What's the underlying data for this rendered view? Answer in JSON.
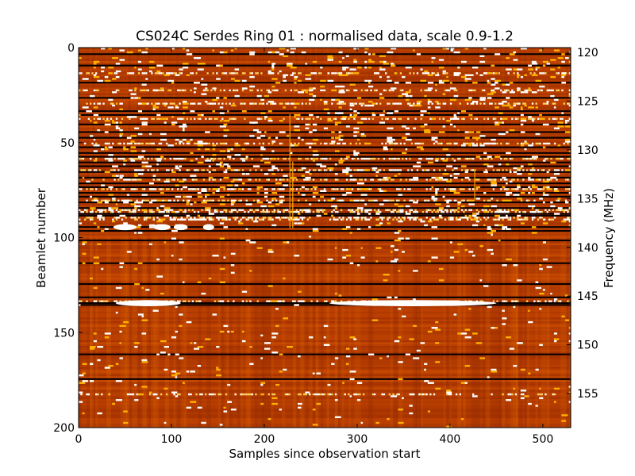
{
  "chart_data": {
    "type": "heatmap",
    "title": "CS024C Serdes Ring 01 : normalised data, scale 0.9-1.2",
    "xlabel": "Samples since observation start",
    "ylabel": "Beamlet number",
    "y2label": "Frequency (MHz)",
    "xlim": [
      0,
      530
    ],
    "ylim": [
      200,
      0
    ],
    "y2lim": [
      119.5,
      158.5
    ],
    "x_ticks": [
      0,
      100,
      200,
      300,
      400,
      500
    ],
    "y_ticks": [
      0,
      50,
      100,
      150,
      200
    ],
    "y2_ticks": [
      120,
      125,
      130,
      135,
      140,
      145,
      150,
      155
    ],
    "color_scale": [
      0.9,
      1.2
    ],
    "colormap": "afmhot",
    "grid": false,
    "dark_beamlets": [
      3,
      9,
      18,
      26,
      33,
      35,
      40,
      44,
      47,
      52,
      55,
      57,
      60,
      62,
      65,
      68,
      71,
      73,
      76,
      78,
      81,
      84,
      87,
      88,
      94,
      96,
      101,
      113,
      124,
      131,
      134,
      135,
      161,
      174
    ],
    "bright_beamlets": [
      13,
      22,
      29,
      37,
      50,
      58,
      64,
      69,
      74,
      80,
      85,
      86,
      89,
      90,
      133,
      182
    ],
    "bright_blobs": [
      {
        "beamlet": 94,
        "sample": 50,
        "width": 25
      },
      {
        "beamlet": 94,
        "sample": 90,
        "width": 18
      },
      {
        "beamlet": 94,
        "sample": 110,
        "width": 15
      },
      {
        "beamlet": 94,
        "sample": 140,
        "width": 12
      },
      {
        "beamlet": 134,
        "sample": 75,
        "width": 70
      },
      {
        "beamlet": 134,
        "sample": 360,
        "width": 180
      }
    ]
  }
}
